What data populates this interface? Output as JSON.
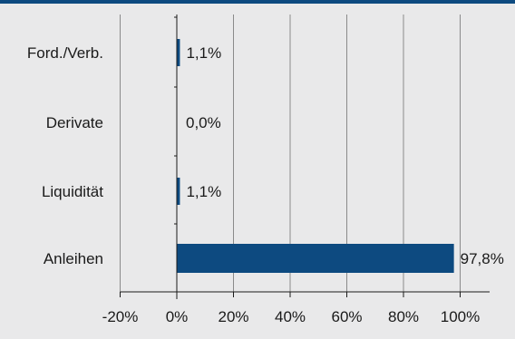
{
  "chart_data": {
    "type": "bar",
    "orientation": "horizontal",
    "categories": [
      "Ford./Verb.",
      "Derivate",
      "Liquidität",
      "Anleihen"
    ],
    "values": [
      1.1,
      0.0,
      1.1,
      97.8
    ],
    "value_labels": [
      "1,1%",
      "0,0%",
      "1,1%",
      "97,8%"
    ],
    "xlim": [
      -20,
      110
    ],
    "xticks": [
      -20,
      0,
      20,
      40,
      60,
      80,
      100
    ],
    "xtick_labels": [
      "-20%",
      "0%",
      "20%",
      "40%",
      "60%",
      "80%",
      "100%"
    ],
    "title": "",
    "xlabel": "",
    "ylabel": "",
    "grid": "vertical",
    "bar_color": "#0d4a80",
    "grid_color": "#8a8a8a"
  },
  "colors": {
    "background": "#e9e9ea",
    "accent": "#0d4a80",
    "text": "#1a1a1a"
  }
}
